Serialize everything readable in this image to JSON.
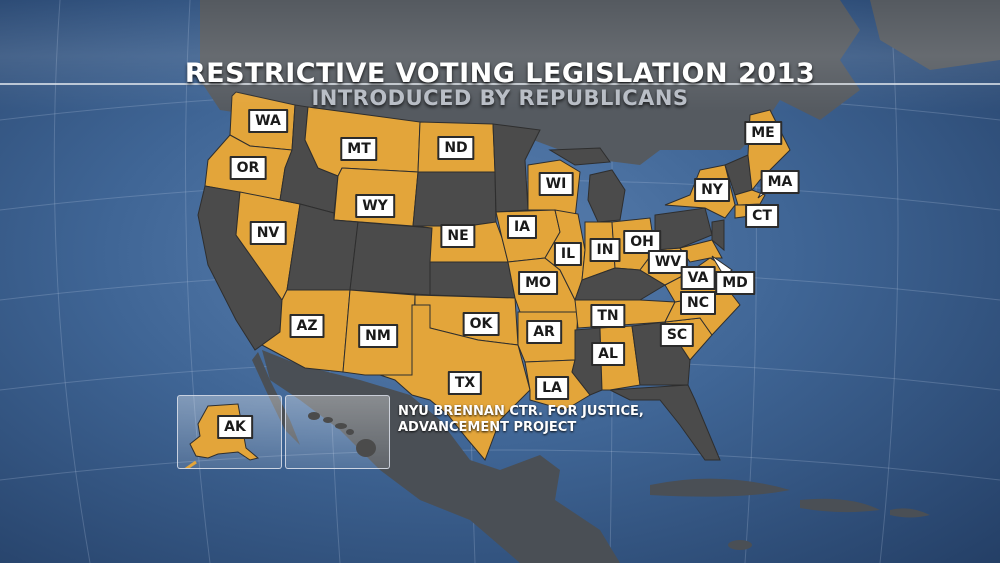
{
  "title": "RESTRICTIVE VOTING LEGISLATION 2013",
  "subtitle": "INTRODUCED BY REPUBLICANS",
  "source_line1": "NYU BRENNAN CTR. FOR JUSTICE,",
  "source_line2": "ADVANCEMENT PROJECT",
  "colors": {
    "highlighted": "#e3a53a",
    "other": "#4b4b4b",
    "ocean": "#3f6595"
  },
  "states": {
    "WA": "WA",
    "OR": "OR",
    "MT": "MT",
    "ND": "ND",
    "WY": "WY",
    "NV": "NV",
    "NE": "NE",
    "IA": "IA",
    "WI": "WI",
    "IL": "IL",
    "IN": "IN",
    "OH": "OH",
    "MO": "MO",
    "WV": "WV",
    "VA": "VA",
    "MD": "MD",
    "AZ": "AZ",
    "NM": "NM",
    "OK": "OK",
    "AR": "AR",
    "TN": "TN",
    "NC": "NC",
    "SC": "SC",
    "AL": "AL",
    "TX": "TX",
    "LA": "LA",
    "NY": "NY",
    "ME": "ME",
    "MA": "MA",
    "CT": "CT",
    "AK": "AK"
  }
}
